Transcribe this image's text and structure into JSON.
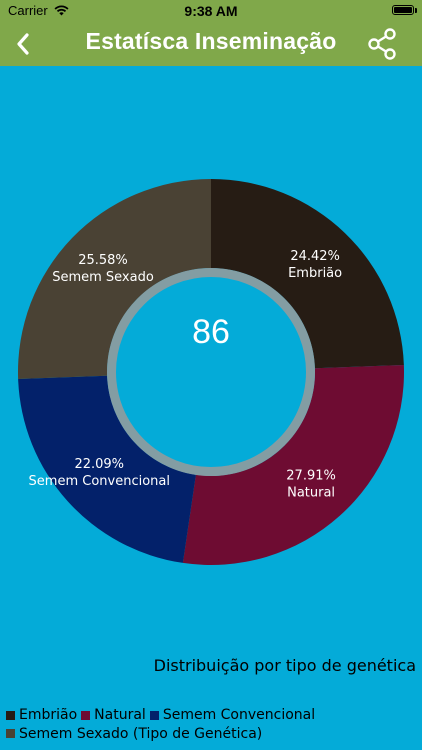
{
  "status_bar": {
    "carrier": "Carrier",
    "time": "9:38 AM"
  },
  "nav": {
    "title": "Estatísca Inseminação"
  },
  "chart_data": {
    "type": "pie",
    "total_label": "86",
    "title": "Distribuição por tipo de genética",
    "legend_placement": "bottom-left",
    "legend_suffix": "(Tipo de Genética)",
    "slices": [
      {
        "name": "Embrião",
        "value": 24.42,
        "label": "24.42%",
        "color": "#261C14"
      },
      {
        "name": "Natural",
        "value": 27.91,
        "label": "27.91%",
        "color": "#6E0C32"
      },
      {
        "name": "Semem Convencional",
        "value": 22.09,
        "label": "22.09%",
        "color": "#03216A"
      },
      {
        "name": "Semem Sexado",
        "value": 25.58,
        "label": "25.58%",
        "color": "#4A4234"
      }
    ]
  }
}
